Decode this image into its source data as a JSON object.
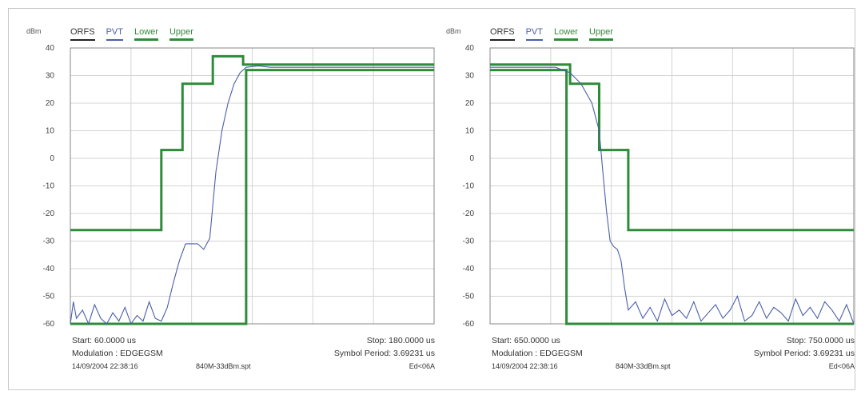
{
  "colors": {
    "limit": "#2e8b3a",
    "trace": "#4a5fa8",
    "grid": "#d4d4d4",
    "axis": "#888888"
  },
  "legend": [
    "ORFS",
    "PVT",
    "Lower",
    "Upper"
  ],
  "chart_data": [
    {
      "type": "line",
      "ylabel": "dBm",
      "ylim": [
        -60,
        40
      ],
      "xlim": [
        60,
        180
      ],
      "y_ticks": [
        "40",
        "30",
        "20",
        "10",
        "0",
        "-10",
        "-20",
        "-30",
        "-40",
        "-50",
        "-60"
      ],
      "grid": true,
      "series": [
        {
          "name": "Upper",
          "x": [
            60,
            90,
            90,
            97,
            97,
            107,
            107,
            117,
            117,
            180
          ],
          "y": [
            -26,
            -26,
            3,
            3,
            27,
            27,
            37,
            37,
            34,
            34
          ]
        },
        {
          "name": "Lower",
          "x": [
            60,
            118,
            118,
            180
          ],
          "y": [
            -60,
            -60,
            32,
            32
          ]
        },
        {
          "name": "PVT",
          "x": [
            60,
            61,
            62,
            64,
            66,
            68,
            70,
            72,
            74,
            76,
            78,
            80,
            82,
            84,
            86,
            88,
            90,
            92,
            94,
            96,
            98,
            100,
            102,
            104,
            106,
            108,
            110,
            112,
            114,
            116,
            118,
            122,
            126,
            130,
            140,
            150,
            160,
            170,
            180
          ],
          "y": [
            -60,
            -52,
            -58,
            -55,
            -60,
            -53,
            -58,
            -60,
            -56,
            -59,
            -54,
            -60,
            -57,
            -59,
            -52,
            -58,
            -59,
            -54,
            -45,
            -37,
            -31,
            -31,
            -31,
            -33,
            -29,
            -5,
            10,
            20,
            27,
            31,
            33,
            33.5,
            33,
            33,
            33,
            33,
            33,
            33,
            33
          ]
        }
      ],
      "footer": {
        "start": "Start: 60.0000 us",
        "stop": "Stop: 180.0000 us",
        "modulation": "Modulation : EDGEGSM",
        "symbol": "Symbol Period: 3.69231 us",
        "date": "14/09/2004 22:38:16",
        "file": "840M-33dBm.spt",
        "ref": "Ed<06A"
      }
    },
    {
      "type": "line",
      "ylabel": "dBm",
      "ylim": [
        -60,
        40
      ],
      "xlim": [
        650,
        750
      ],
      "y_ticks": [
        "40",
        "30",
        "20",
        "10",
        "0",
        "-10",
        "-20",
        "-30",
        "-40",
        "-50",
        "-60"
      ],
      "grid": true,
      "series": [
        {
          "name": "Upper",
          "x": [
            650,
            672,
            672,
            680,
            680,
            688,
            688,
            697,
            697,
            750
          ],
          "y": [
            34,
            34,
            27,
            27,
            3,
            3,
            -26,
            -26,
            -26,
            -26
          ]
        },
        {
          "name": "Lower",
          "x": [
            650,
            671,
            671,
            750
          ],
          "y": [
            32,
            32,
            -60,
            -60
          ]
        },
        {
          "name": "PVT",
          "x": [
            650,
            660,
            668,
            672,
            675,
            678,
            680,
            681,
            682,
            683,
            684,
            685,
            686,
            687,
            688,
            690,
            692,
            694,
            696,
            698,
            700,
            702,
            704,
            706,
            708,
            710,
            712,
            714,
            716,
            718,
            720,
            722,
            724,
            726,
            728,
            730,
            732,
            734,
            736,
            738,
            740,
            742,
            744,
            746,
            748,
            750
          ],
          "y": [
            33,
            33,
            33,
            31,
            27,
            20,
            10,
            -5,
            -19,
            -30,
            -32,
            -33,
            -37,
            -47,
            -55,
            -52,
            -58,
            -54,
            -59,
            -51,
            -57,
            -55,
            -58,
            -52,
            -59,
            -56,
            -53,
            -58,
            -55,
            -50,
            -59,
            -57,
            -52,
            -58,
            -54,
            -56,
            -59,
            -51,
            -57,
            -54,
            -58,
            -52,
            -55,
            -59,
            -53,
            -60
          ]
        }
      ],
      "footer": {
        "start": "Start: 650.0000 us",
        "stop": "Stop: 750.0000 us",
        "modulation": "Modulation : EDGEGSM",
        "symbol": "Symbol Period: 3.69231 us",
        "date": "14/09/2004 22:38:16",
        "file": "840M-33dBm.spt",
        "ref": "Ed<06A"
      }
    }
  ]
}
